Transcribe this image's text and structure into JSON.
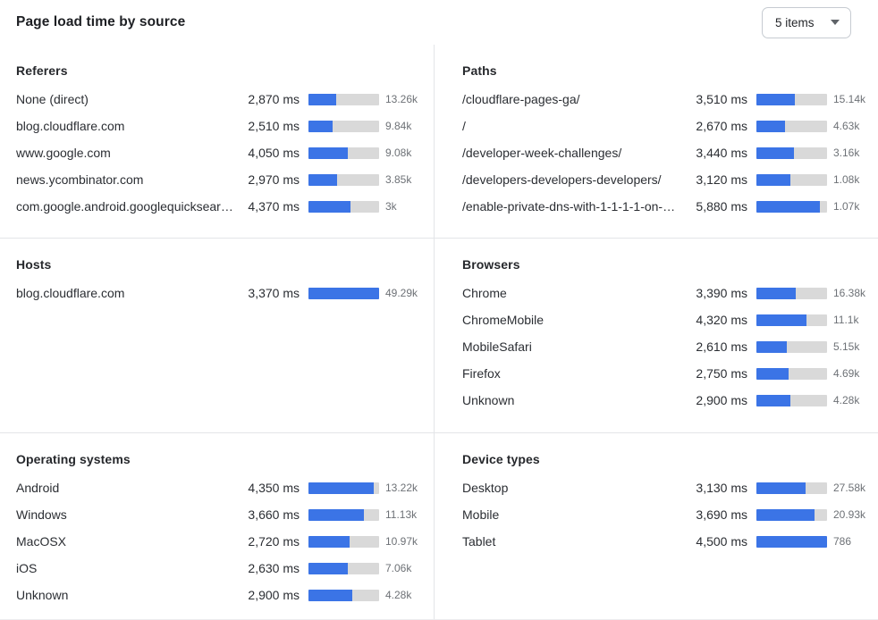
{
  "header": {
    "title": "Page load time by source",
    "items_dropdown": {
      "value": "5 items",
      "icon": "chevron-down-icon"
    }
  },
  "colors": {
    "bar_fill": "#3b74e6",
    "bar_track": "#d9d9d9",
    "divider": "#e3e5e8",
    "count_text": "#6d7176"
  },
  "chart_data": {
    "type": "bar",
    "title": "Page load time by source",
    "unit": "ms",
    "legend": "none",
    "layout": "2-column grid of 6 horizontal-bar panels; each row shows label, load time in ms, bar scaled to panel max, and request count",
    "panels": [
      {
        "title": "Referers",
        "bar_scale_max_ms": 7280,
        "rows": [
          {
            "label": "None (direct)",
            "ms_value": 2870,
            "ms_display": "2,870 ms",
            "count_display": "13.26k"
          },
          {
            "label": "blog.cloudflare.com",
            "ms_value": 2510,
            "ms_display": "2,510 ms",
            "count_display": "9.84k"
          },
          {
            "label": "www.google.com",
            "ms_value": 4050,
            "ms_display": "4,050 ms",
            "count_display": "9.08k"
          },
          {
            "label": "news.ycombinator.com",
            "ms_value": 2970,
            "ms_display": "2,970 ms",
            "count_display": "3.85k"
          },
          {
            "label": "com.google.android.googlequicksearc…",
            "ms_value": 4370,
            "ms_display": "4,370 ms",
            "count_display": "3k"
          }
        ]
      },
      {
        "title": "Paths",
        "bar_scale_max_ms": 6530,
        "rows": [
          {
            "label": "/cloudflare-pages-ga/",
            "ms_value": 3510,
            "ms_display": "3,510 ms",
            "count_display": "15.14k"
          },
          {
            "label": "/",
            "ms_value": 2670,
            "ms_display": "2,670 ms",
            "count_display": "4.63k"
          },
          {
            "label": "/developer-week-challenges/",
            "ms_value": 3440,
            "ms_display": "3,440 ms",
            "count_display": "3.16k"
          },
          {
            "label": "/developers-developers-developers/",
            "ms_value": 3120,
            "ms_display": "3,120 ms",
            "count_display": "1.08k"
          },
          {
            "label": "/enable-private-dns-with-1-1-1-1-on-…",
            "ms_value": 5880,
            "ms_display": "5,880 ms",
            "count_display": "1.07k"
          }
        ]
      },
      {
        "title": "Hosts",
        "bar_scale_max_ms": 3370,
        "rows": [
          {
            "label": "blog.cloudflare.com",
            "ms_value": 3370,
            "ms_display": "3,370 ms",
            "count_display": "49.29k"
          }
        ]
      },
      {
        "title": "Browsers",
        "bar_scale_max_ms": 6090,
        "rows": [
          {
            "label": "Chrome",
            "ms_value": 3390,
            "ms_display": "3,390 ms",
            "count_display": "16.38k"
          },
          {
            "label": "ChromeMobile",
            "ms_value": 4320,
            "ms_display": "4,320 ms",
            "count_display": "11.1k"
          },
          {
            "label": "MobileSafari",
            "ms_value": 2610,
            "ms_display": "2,610 ms",
            "count_display": "5.15k"
          },
          {
            "label": "Firefox",
            "ms_value": 2750,
            "ms_display": "2,750 ms",
            "count_display": "4.69k"
          },
          {
            "label": "Unknown",
            "ms_value": 2900,
            "ms_display": "2,900 ms",
            "count_display": "4.28k"
          }
        ]
      },
      {
        "title": "Operating systems",
        "bar_scale_max_ms": 4680,
        "rows": [
          {
            "label": "Android",
            "ms_value": 4350,
            "ms_display": "4,350 ms",
            "count_display": "13.22k"
          },
          {
            "label": "Windows",
            "ms_value": 3660,
            "ms_display": "3,660 ms",
            "count_display": "11.13k"
          },
          {
            "label": "MacOSX",
            "ms_value": 2720,
            "ms_display": "2,720 ms",
            "count_display": "10.97k"
          },
          {
            "label": "iOS",
            "ms_value": 2630,
            "ms_display": "2,630 ms",
            "count_display": "7.06k"
          },
          {
            "label": "Unknown",
            "ms_value": 2900,
            "ms_display": "2,900 ms",
            "count_display": "4.28k"
          }
        ]
      },
      {
        "title": "Device types",
        "bar_scale_max_ms": 4500,
        "rows": [
          {
            "label": "Desktop",
            "ms_value": 3130,
            "ms_display": "3,130 ms",
            "count_display": "27.58k"
          },
          {
            "label": "Mobile",
            "ms_value": 3690,
            "ms_display": "3,690 ms",
            "count_display": "20.93k"
          },
          {
            "label": "Tablet",
            "ms_value": 4500,
            "ms_display": "4,500 ms",
            "count_display": "786"
          }
        ]
      }
    ]
  }
}
